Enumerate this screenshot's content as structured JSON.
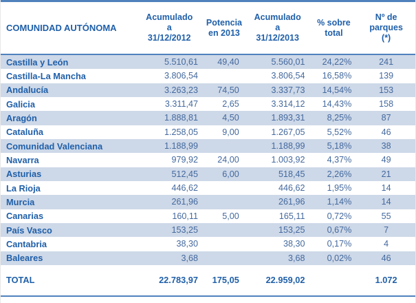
{
  "chart_data": {
    "type": "table",
    "title": "",
    "columns": [
      "COMUNIDAD AUTÓNOMA",
      "Acumulado a 31/12/2012",
      "Potencia en 2013",
      "Acumulado a 31/12/2013",
      "% sobre total",
      "Nº de parques (*)"
    ],
    "rows": [
      [
        "Castilla y León",
        "5.510,61",
        "49,40",
        "5.560,01",
        "24,22%",
        "241"
      ],
      [
        "Castilla-La Mancha",
        "3.806,54",
        "",
        "3.806,54",
        "16,58%",
        "139"
      ],
      [
        "Andalucía",
        "3.263,23",
        "74,50",
        "3.337,73",
        "14,54%",
        "153"
      ],
      [
        "Galicia",
        "3.311,47",
        "2,65",
        "3.314,12",
        "14,43%",
        "158"
      ],
      [
        "Aragón",
        "1.888,81",
        "4,50",
        "1.893,31",
        "8,25%",
        "87"
      ],
      [
        "Cataluña",
        "1.258,05",
        "9,00",
        "1.267,05",
        "5,52%",
        "46"
      ],
      [
        "Comunidad Valenciana",
        "1.188,99",
        "",
        "1.188,99",
        "5,18%",
        "38"
      ],
      [
        "Navarra",
        "979,92",
        "24,00",
        "1.003,92",
        "4,37%",
        "49"
      ],
      [
        "Asturias",
        "512,45",
        "6,00",
        "518,45",
        "2,26%",
        "21"
      ],
      [
        "La Rioja",
        "446,62",
        "",
        "446,62",
        "1,95%",
        "14"
      ],
      [
        "Murcia",
        "261,96",
        "",
        "261,96",
        "1,14%",
        "14"
      ],
      [
        "Canarias",
        "160,11",
        "5,00",
        "165,11",
        "0,72%",
        "55"
      ],
      [
        "País Vasco",
        "153,25",
        "",
        "153,25",
        "0,67%",
        "7"
      ],
      [
        "Cantabria",
        "38,30",
        "",
        "38,30",
        "0,17%",
        "4"
      ],
      [
        "Baleares",
        "3,68",
        "",
        "3,68",
        "0,02%",
        "46"
      ]
    ],
    "total": [
      "TOTAL",
      "22.783,97",
      "175,05",
      "22.959,02",
      "",
      "1.072"
    ]
  },
  "display": {
    "header_lines": [
      "COMUNIDAD AUTÓNOMA",
      "Acumulado\na\n31/12/2012",
      "Potencia\nen 2013",
      "Acumulado\na\n31/12/2013",
      "% sobre\ntotal",
      "Nº de\nparques\n(*)"
    ]
  },
  "colors": {
    "accent_line": "#4f81bd",
    "row_stripe": "#cdd8e8",
    "label_text": "#1f5fa9",
    "number_text": "#44699e"
  }
}
